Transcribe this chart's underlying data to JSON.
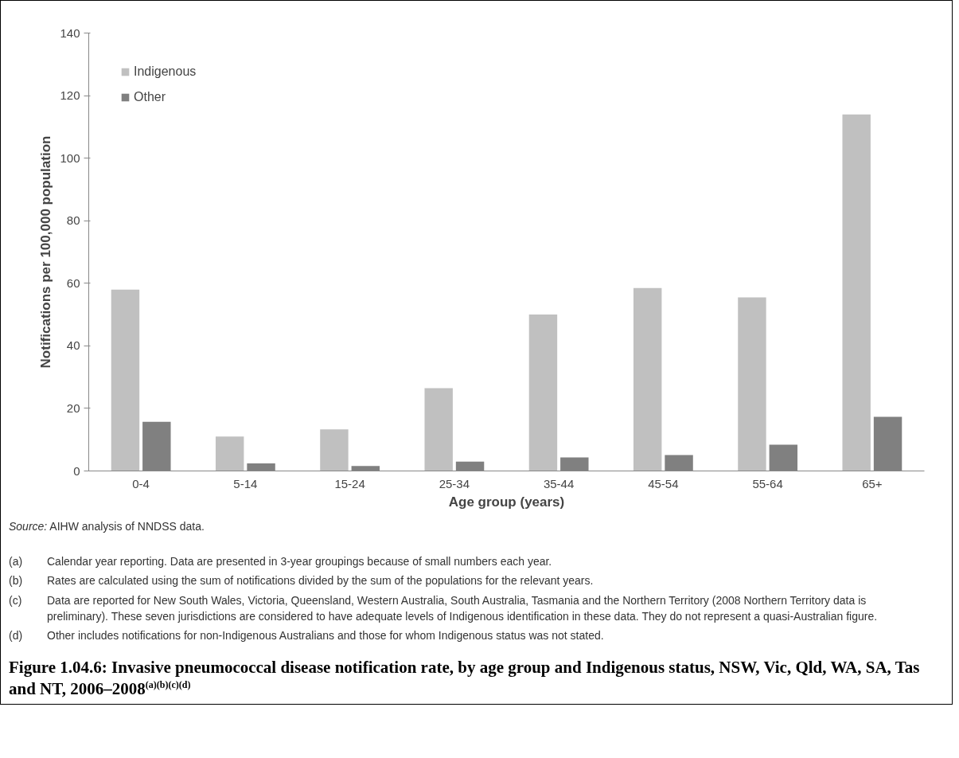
{
  "chart_data": {
    "type": "bar",
    "title": "Figure 1.04.6: Invasive pneumococcal disease notification rate, by age group and Indigenous status, NSW, Vic, Qld, WA, SA, Tas and NT, 2006–2008$^{(a)(b)(c)(d)}$",
    "xlabel": "Age group (years)",
    "ylabel": "Notifications per 100,000 population",
    "categories": [
      "0-4",
      "5-14",
      "15-24",
      "25-34",
      "35-44",
      "45-54",
      "55-64",
      "65+"
    ],
    "series": [
      {
        "name": "Indigenous",
        "color": "#c0c0c0",
        "values": [
          58,
          11,
          13.3,
          26.5,
          50,
          58.5,
          55.5,
          114
        ]
      },
      {
        "name": "Other",
        "color": "#808080",
        "values": [
          15.7,
          2.4,
          1.6,
          3,
          4.3,
          5.1,
          8.4,
          17.3
        ]
      }
    ],
    "ylim": [
      0,
      140
    ],
    "yticks": [
      0,
      20,
      40,
      60,
      80,
      100,
      120,
      140
    ],
    "grid": false,
    "legend": "top left",
    "annotations": [
      "Source: AIHW analysis of NNDSS data.",
      "(a) Calendar year reporting. Data are presented in 3-year groupings because of small numbers each year.",
      "(b) Rates are calculated using the sum of notifications divided by the sum of the populations for the relevant years.",
      "(c) Data are reported for New South Wales, Victoria, Queensland, Western Australia, South Australia, Tasmania and the Northern Territory (2008 Northern Territory data is preliminary). These seven jurisdictions are considered to have adequate levels of Indigenous identification in these data. They do not represent a quasi-Australian figure.",
      "(d) Other includes notifications for non-Indigenous Australians and those for whom Indigenous status was not stated."
    ]
  }
}
